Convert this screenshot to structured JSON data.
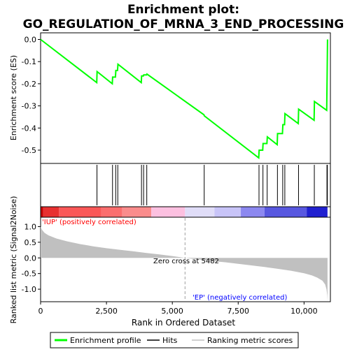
{
  "chart_data": {
    "type": "line",
    "title": "Enrichment plot:\nGO_REGULATION_OF_MRNA_3_END_PROCESSING",
    "title_lines": [
      "Enrichment plot:",
      "GO_REGULATION_OF_MRNA_3_END_PROCESSING"
    ],
    "es_panel": {
      "ylabel": "Enrichment score (ES)",
      "ylim": [
        -0.56,
        0.03
      ],
      "yticks": [
        0.0,
        -0.1,
        -0.2,
        -0.3,
        -0.4,
        -0.5
      ],
      "ytick_labels": [
        "0.0",
        "-0.1",
        "-0.2",
        "-0.3",
        "-0.4",
        "-0.5"
      ],
      "series": [
        {
          "name": "Enrichment profile",
          "color": "#00ff00",
          "x": [
            0,
            2130,
            2145,
            2720,
            2735,
            2840,
            2855,
            2920,
            2935,
            3820,
            3835,
            3900,
            3915,
            4020,
            4035,
            6200,
            6215,
            8280,
            8295,
            8430,
            8445,
            8590,
            8605,
            8980,
            8995,
            9180,
            9195,
            9260,
            9275,
            9780,
            9795,
            10380,
            10395,
            10860,
            10875,
            10890
          ],
          "y": [
            0.0,
            -0.195,
            -0.145,
            -0.2,
            -0.17,
            -0.17,
            -0.14,
            -0.14,
            -0.112,
            -0.195,
            -0.165,
            -0.165,
            -0.16,
            -0.16,
            -0.156,
            -0.34,
            -0.345,
            -0.535,
            -0.5,
            -0.5,
            -0.47,
            -0.47,
            -0.44,
            -0.475,
            -0.425,
            -0.425,
            -0.385,
            -0.385,
            -0.335,
            -0.38,
            -0.315,
            -0.365,
            -0.28,
            -0.32,
            -0.17,
            0.0
          ]
        }
      ]
    },
    "hits_panel": {
      "hit_positions": [
        2140,
        2730,
        2850,
        2930,
        3830,
        3910,
        4030,
        6210,
        8290,
        8440,
        8600,
        8990,
        9190,
        9270,
        9790,
        10390,
        10870,
        10885
      ]
    },
    "ranking_panel": {
      "ylabel": "Ranked list metric (Signal2Noise)",
      "ylim": [
        -1.4,
        1.3
      ],
      "yticks": [
        1.0,
        0.5,
        0.0,
        -0.5,
        -1.0
      ],
      "ytick_labels": [
        "1.0",
        "0.5",
        "0.0",
        "-0.5",
        "-1.0"
      ],
      "x": [
        0,
        50,
        150,
        300,
        600,
        1000,
        1500,
        2000,
        2500,
        3000,
        3500,
        4000,
        4500,
        5000,
        5482,
        6000,
        6500,
        7000,
        7500,
        8000,
        8500,
        9000,
        9500,
        10000,
        10300,
        10500,
        10700,
        10800,
        10850,
        10880,
        10890
      ],
      "values": [
        1.0,
        0.9,
        0.8,
        0.72,
        0.62,
        0.53,
        0.44,
        0.37,
        0.31,
        0.26,
        0.21,
        0.16,
        0.11,
        0.06,
        0.0,
        -0.05,
        -0.1,
        -0.14,
        -0.19,
        -0.24,
        -0.29,
        -0.35,
        -0.41,
        -0.49,
        -0.56,
        -0.63,
        -0.73,
        -0.85,
        -1.0,
        -1.2,
        -1.38
      ],
      "fill_color": "#c0c0c0",
      "zero_cross_label": "Zero cross at 5482",
      "zero_cross": 5482,
      "pos_label": "'IUP' (positively correlated)",
      "neg_label": "'EP' (negatively correlated)",
      "pos_color": "#ff0000",
      "neg_color": "#0000ff"
    },
    "xlabel": "Rank in Ordered Dataset",
    "xlim": [
      0,
      11000
    ],
    "xticks": [
      0,
      2500,
      5000,
      7500,
      10000
    ],
    "xtick_labels": [
      "0",
      "2,500",
      "5,000",
      "7,500",
      "10,000"
    ],
    "n_genes": 10890,
    "color_bar": [
      {
        "from": 0,
        "to": 100,
        "color": "#c80000"
      },
      {
        "from": 100,
        "to": 700,
        "color": "#e83030"
      },
      {
        "from": 700,
        "to": 2300,
        "color": "#fa5858"
      },
      {
        "from": 2300,
        "to": 3100,
        "color": "#fb6e6e"
      },
      {
        "from": 3100,
        "to": 4200,
        "color": "#fa8c8c"
      },
      {
        "from": 4200,
        "to": 5482,
        "color": "#fcc0e0"
      },
      {
        "from": 5482,
        "to": 6600,
        "color": "#e0ddf8"
      },
      {
        "from": 6600,
        "to": 7600,
        "color": "#c8c4f8"
      },
      {
        "from": 7600,
        "to": 8500,
        "color": "#8c88f0"
      },
      {
        "from": 8500,
        "to": 10100,
        "color": "#5858e0"
      },
      {
        "from": 10100,
        "to": 10890,
        "color": "#2020d0"
      }
    ],
    "legend": {
      "placement": "bottom",
      "items": [
        {
          "label": "Enrichment profile",
          "color": "#00ff00"
        },
        {
          "label": "Hits",
          "color": "#000000"
        },
        {
          "label": "Ranking metric scores",
          "color": "#c0c0c0"
        }
      ]
    }
  }
}
